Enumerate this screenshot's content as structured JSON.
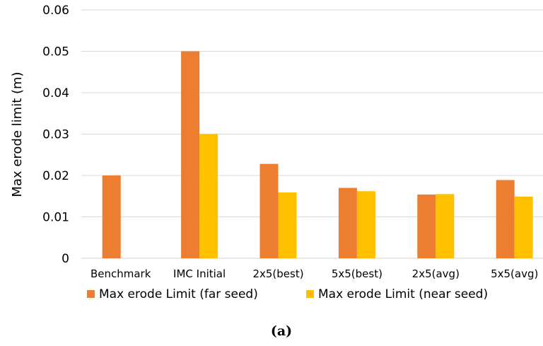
{
  "chart_data": {
    "type": "bar",
    "categories": [
      "Benchmark",
      "IMC Initial",
      "2x5(best)",
      "5x5(best)",
      "2x5(avg)",
      "5x5(avg)"
    ],
    "series": [
      {
        "name": "Max erode Limit (far seed)",
        "color": "#ED7D31",
        "values": [
          0.02,
          0.05,
          0.0228,
          0.017,
          0.0154,
          0.0189
        ]
      },
      {
        "name": "Max erode Limit (near seed)",
        "color": "#FFC000",
        "values": [
          null,
          0.03,
          0.0159,
          0.0162,
          0.0155,
          0.0149
        ]
      }
    ],
    "ylabel": "Max erode limit (m)",
    "xlabel": "",
    "ylim": [
      0,
      0.06
    ],
    "yticks": [
      "0",
      "0.01",
      "0.02",
      "0.03",
      "0.04",
      "0.05",
      "0.06"
    ],
    "grid": true,
    "legend_position": "bottom"
  },
  "caption": "(a)"
}
